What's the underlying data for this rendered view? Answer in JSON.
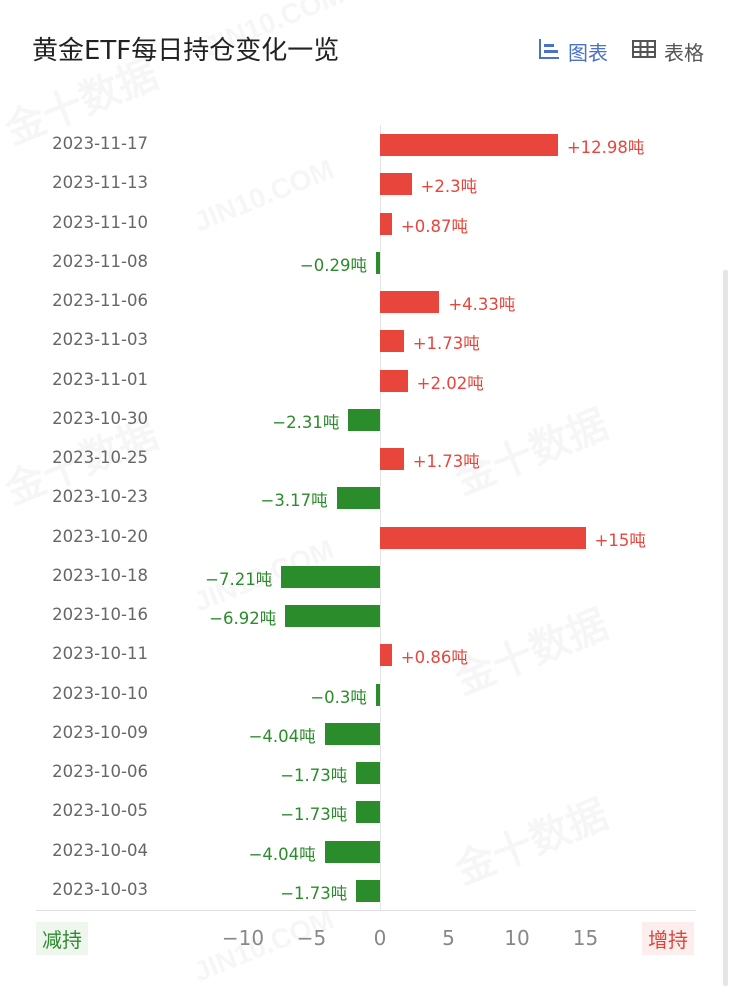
{
  "header": {
    "title": "黄金ETF每日持仓变化一览",
    "tabs": [
      {
        "label": "图表",
        "icon": "bar-chart-icon",
        "active": true
      },
      {
        "label": "表格",
        "icon": "table-grid-icon",
        "active": false
      }
    ]
  },
  "colors": {
    "increase": "#e8453c",
    "decrease": "#2a8c2a",
    "active_tab": "#4a72c9"
  },
  "legend": {
    "decrease_label": "减持",
    "increase_label": "增持"
  },
  "watermark": {
    "text_en": "JIN10.COM",
    "text_cn": "金十数据"
  },
  "chart_data": {
    "type": "bar",
    "orientation": "horizontal",
    "title": "黄金ETF每日持仓变化一览",
    "unit": "吨",
    "xlabel": "",
    "ylabel": "",
    "xlim": [
      -12,
      18
    ],
    "x_ticks": [
      -10,
      -5,
      0,
      5,
      10,
      15
    ],
    "grid": false,
    "categories": [
      "2023-11-17",
      "2023-11-13",
      "2023-11-10",
      "2023-11-08",
      "2023-11-06",
      "2023-11-03",
      "2023-11-01",
      "2023-10-30",
      "2023-10-25",
      "2023-10-23",
      "2023-10-20",
      "2023-10-18",
      "2023-10-16",
      "2023-10-11",
      "2023-10-10",
      "2023-10-09",
      "2023-10-06",
      "2023-10-05",
      "2023-10-04",
      "2023-10-03"
    ],
    "values": [
      12.98,
      2.3,
      0.87,
      -0.29,
      4.33,
      1.73,
      2.02,
      -2.31,
      1.73,
      -3.17,
      15,
      -7.21,
      -6.92,
      0.86,
      -0.3,
      -4.04,
      -1.73,
      -1.73,
      -4.04,
      -1.73
    ],
    "labels": [
      "+12.98吨",
      "+2.3吨",
      "+0.87吨",
      "-0.29吨",
      "+4.33吨",
      "+1.73吨",
      "+2.02吨",
      "-2.31吨",
      "+1.73吨",
      "-3.17吨",
      "+15吨",
      "-7.21吨",
      "-6.92吨",
      "+0.86吨",
      "-0.3吨",
      "-4.04吨",
      "-1.73吨",
      "-1.73吨",
      "-4.04吨",
      "-1.73吨"
    ],
    "legend": [
      "减持",
      "增持"
    ]
  }
}
